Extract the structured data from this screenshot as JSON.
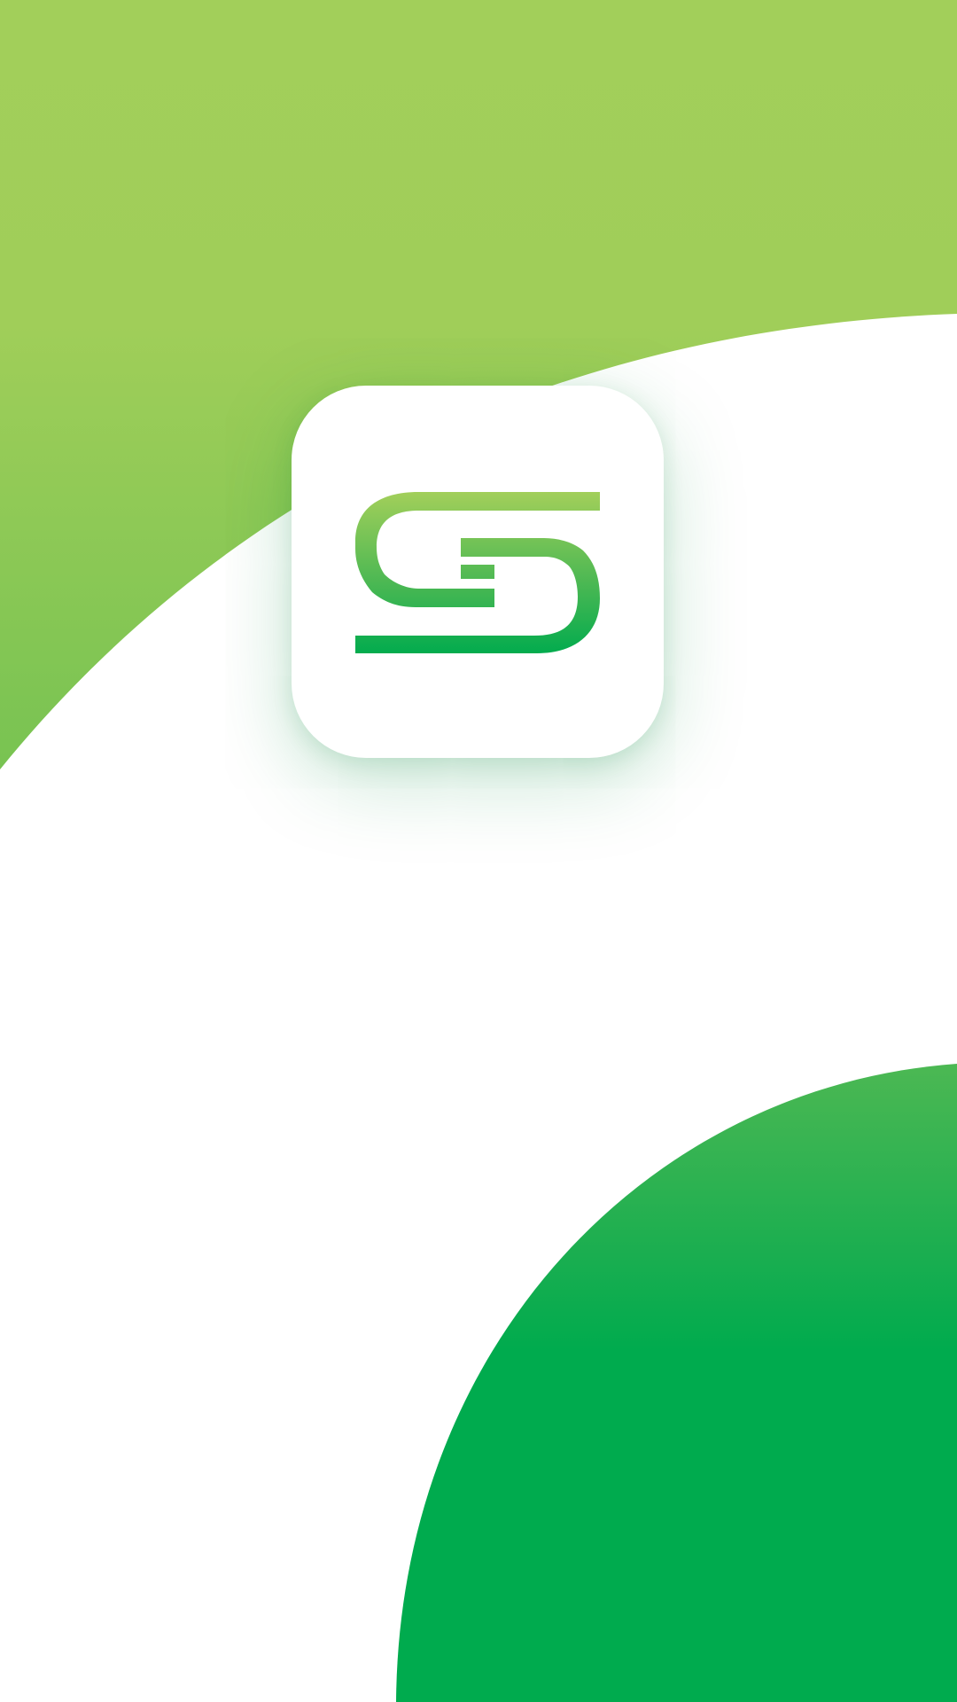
{
  "splash": {
    "logo_icon": "s-monogram-logo-icon",
    "colors": {
      "background": "#ffffff",
      "top_shape_light": "#a2cf5a",
      "top_shape_dark": "#7ec552",
      "bottom_shape_light": "#45b653",
      "bottom_shape_dark": "#00ab4e",
      "logo_gradient_top": "#a2cf5a",
      "logo_gradient_bottom": "#00ab4e",
      "card": "#ffffff"
    }
  }
}
